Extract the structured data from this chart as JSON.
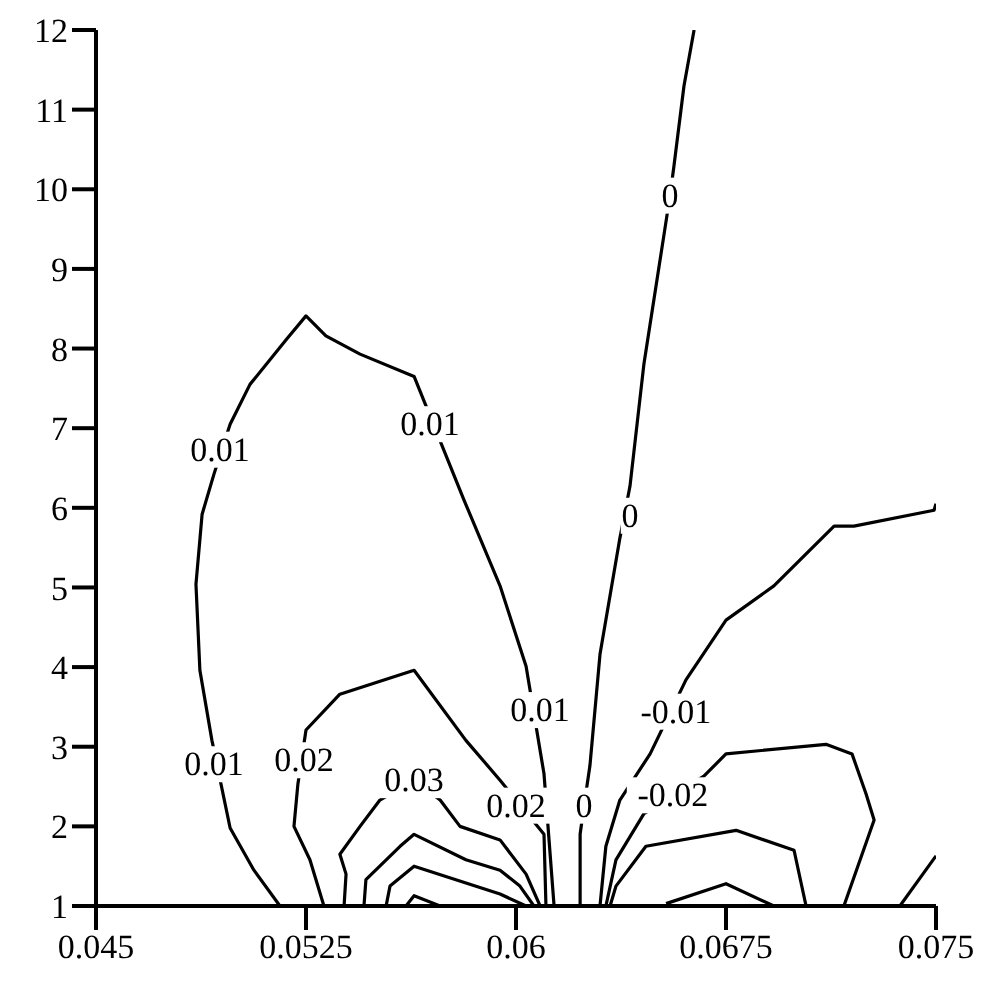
{
  "chart_data": {
    "type": "line",
    "xlim": [
      0.045,
      0.075
    ],
    "xticks": [
      0.045,
      0.0525,
      0.06,
      0.0675,
      0.075
    ],
    "ylim": [
      1,
      12
    ],
    "yticks": [
      1,
      2,
      3,
      4,
      5,
      6,
      7,
      8,
      9,
      10,
      11,
      12
    ],
    "grid": false,
    "marker": "none",
    "line_style": "solid",
    "series": [
      {
        "color": "#000000",
        "x": [
          0.05157,
          0.05064,
          0.04979,
          0.04914,
          0.04871,
          0.04857,
          0.04879,
          0.04921,
          0.04979,
          0.0505,
          0.05179,
          0.0525,
          0.05321,
          0.05443,
          0.05636,
          0.05814,
          0.05943,
          0.06036,
          0.061,
          0.06136
        ],
        "values": [
          1,
          1.45,
          1.98,
          3.08,
          3.96,
          5.04,
          5.92,
          6.42,
          7.05,
          7.55,
          8.11,
          8.41,
          8.16,
          7.93,
          7.65,
          6.1,
          5.02,
          4.01,
          2.66,
          1
        ]
      },
      {
        "color": "#000000",
        "x": [
          0.05314,
          0.05264,
          0.05207,
          0.05221,
          0.0525,
          0.05371,
          0.05636,
          0.05821,
          0.05943,
          0.061,
          0.06107
        ],
        "values": [
          1,
          1.58,
          2,
          2.53,
          3.21,
          3.66,
          3.96,
          3.08,
          2.58,
          1.9,
          1
        ]
      },
      {
        "color": "#000000",
        "x": [
          0.05386,
          0.05393,
          0.05371,
          0.05443,
          0.05514,
          0.05636,
          0.05729,
          0.058,
          0.05943,
          0.06036,
          0.06086
        ],
        "values": [
          1,
          1.4,
          1.65,
          2,
          2.33,
          2.58,
          2.33,
          2,
          1.83,
          1.4,
          1
        ]
      },
      {
        "color": "#000000",
        "x": [
          0.05457,
          0.05464,
          0.05586,
          0.05636,
          0.05821,
          0.05943,
          0.06014,
          0.06064
        ],
        "values": [
          1,
          1.33,
          1.75,
          1.9,
          1.58,
          1.45,
          1.25,
          1
        ]
      },
      {
        "color": "#000000",
        "x": [
          0.05536,
          0.0555,
          0.05636,
          0.05943,
          0.06036
        ],
        "values": [
          1,
          1.25,
          1.5,
          1.15,
          1
        ]
      },
      {
        "color": "#000000",
        "x": [
          0.05607,
          0.05636,
          0.05729
        ],
        "values": [
          1,
          1.13,
          1
        ]
      },
      {
        "color": "#000000",
        "x": [
          0.06636,
          0.066,
          0.06564,
          0.0655,
          0.06529,
          0.06457,
          0.06407,
          0.0637,
          0.063,
          0.06264,
          0.06243,
          0.06229,
          0.06229
        ],
        "values": [
          12,
          11.3,
          10.29,
          9.92,
          9.44,
          7.81,
          6.27,
          5.6,
          4.16,
          2.76,
          2.26,
          1.9,
          1
        ]
      },
      {
        "color": "#000000",
        "x": [
          0.075,
          0.07493,
          0.07207,
          0.07136,
          0.06921,
          0.0675,
          0.06607,
          0.06479,
          0.06371,
          0.06321,
          0.063
        ],
        "values": [
          6.05,
          5.97,
          5.77,
          5.77,
          5.02,
          4.59,
          3.84,
          2.91,
          2.33,
          1.75,
          1
        ]
      },
      {
        "color": "#000000",
        "x": [
          0.07171,
          0.07279,
          0.0725,
          0.072,
          0.07107,
          0.0675,
          0.06671,
          0.06457,
          0.06357,
          0.06321
        ],
        "values": [
          1,
          2.08,
          2.41,
          2.91,
          3.03,
          2.91,
          2.63,
          2.16,
          1.58,
          1
        ]
      },
      {
        "color": "#000000",
        "x": [
          0.07036,
          0.06993,
          0.06786,
          0.06464,
          0.06357,
          0.06336
        ],
        "values": [
          1,
          1.7,
          1.95,
          1.75,
          1.25,
          1
        ]
      },
      {
        "color": "#000000",
        "x": [
          0.06921,
          0.0675,
          0.06536
        ],
        "values": [
          1,
          1.28,
          1.03
        ]
      },
      {
        "color": "#000000",
        "x": [
          0.07371,
          0.075
        ],
        "values": [
          1,
          1.63
        ]
      }
    ],
    "annotations": [
      {
        "text": "0.01",
        "x": 0.04943,
        "y": 6.73
      },
      {
        "text": "0.01",
        "x": 0.05693,
        "y": 7.05
      },
      {
        "text": "0.01",
        "x": 0.04921,
        "y": 2.78
      },
      {
        "text": "0.01",
        "x": 0.06086,
        "y": 3.46
      },
      {
        "text": "0.02",
        "x": 0.05243,
        "y": 2.83
      },
      {
        "text": "0.02",
        "x": 0.06,
        "y": 2.26
      },
      {
        "text": "0.03",
        "x": 0.05636,
        "y": 2.58
      },
      {
        "text": "0",
        "x": 0.0655,
        "y": 9.92
      },
      {
        "text": "0",
        "x": 0.06407,
        "y": 5.9
      },
      {
        "text": "0",
        "x": 0.06243,
        "y": 2.26
      },
      {
        "text": "-0.01",
        "x": 0.06571,
        "y": 3.44
      },
      {
        "text": "-0.02",
        "x": 0.0656,
        "y": 2.39
      }
    ]
  }
}
